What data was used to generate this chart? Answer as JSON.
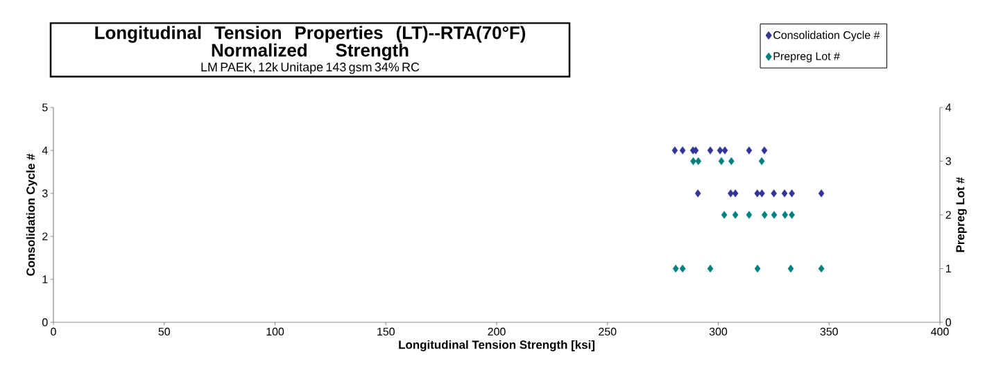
{
  "chart_data": {
    "type": "scatter",
    "title": "Longitudinal Tension Properties (LT)--RTA(70°F) Normalized Strength",
    "subtitle": "LM PAEK, 12k Unitape 143 gsm 34% RC",
    "xlabel": "Longitudinal Tension Strength [ksi]",
    "ylabel": "Consolidation Cycle #",
    "y2label": "Prepreg Lot #",
    "xlim": [
      0,
      400
    ],
    "xticks": [
      0,
      50,
      100,
      150,
      200,
      250,
      300,
      350,
      400
    ],
    "ylim": [
      0,
      5
    ],
    "yticks": [
      0,
      1,
      2,
      3,
      4,
      5
    ],
    "y2lim": [
      0,
      4
    ],
    "y2ticks": [
      0,
      1,
      2,
      3,
      4
    ],
    "marker": "diamond",
    "legend": "top right",
    "grid": false,
    "series": [
      {
        "name": "Consolidation Cycle #",
        "color": "#333399",
        "axis": "y",
        "x": [
          280.4,
          283.9,
          288.6,
          289.8,
          296.4,
          300.8,
          303.0,
          313.9,
          320.8,
          290.8,
          305.6,
          307.7,
          317.6,
          319.7,
          325.1,
          329.9,
          333.2,
          346.5
        ],
        "values": [
          4,
          4,
          4,
          4,
          4,
          4,
          4,
          4,
          4,
          3,
          3,
          3,
          3,
          3,
          3,
          3,
          3,
          3
        ]
      },
      {
        "name": "Prepreg Lot #",
        "color": "#008080",
        "axis": "y2",
        "x": [
          288.7,
          291.0,
          301.4,
          305.9,
          319.6,
          302.7,
          307.7,
          313.9,
          320.9,
          325.2,
          330.1,
          333.2,
          280.8,
          283.9,
          296.4,
          317.7,
          332.7,
          346.5
        ],
        "values": [
          3,
          3,
          3,
          3,
          3,
          2,
          2,
          2,
          2,
          2,
          2,
          2,
          1,
          1,
          1,
          1,
          1,
          1
        ]
      }
    ]
  }
}
